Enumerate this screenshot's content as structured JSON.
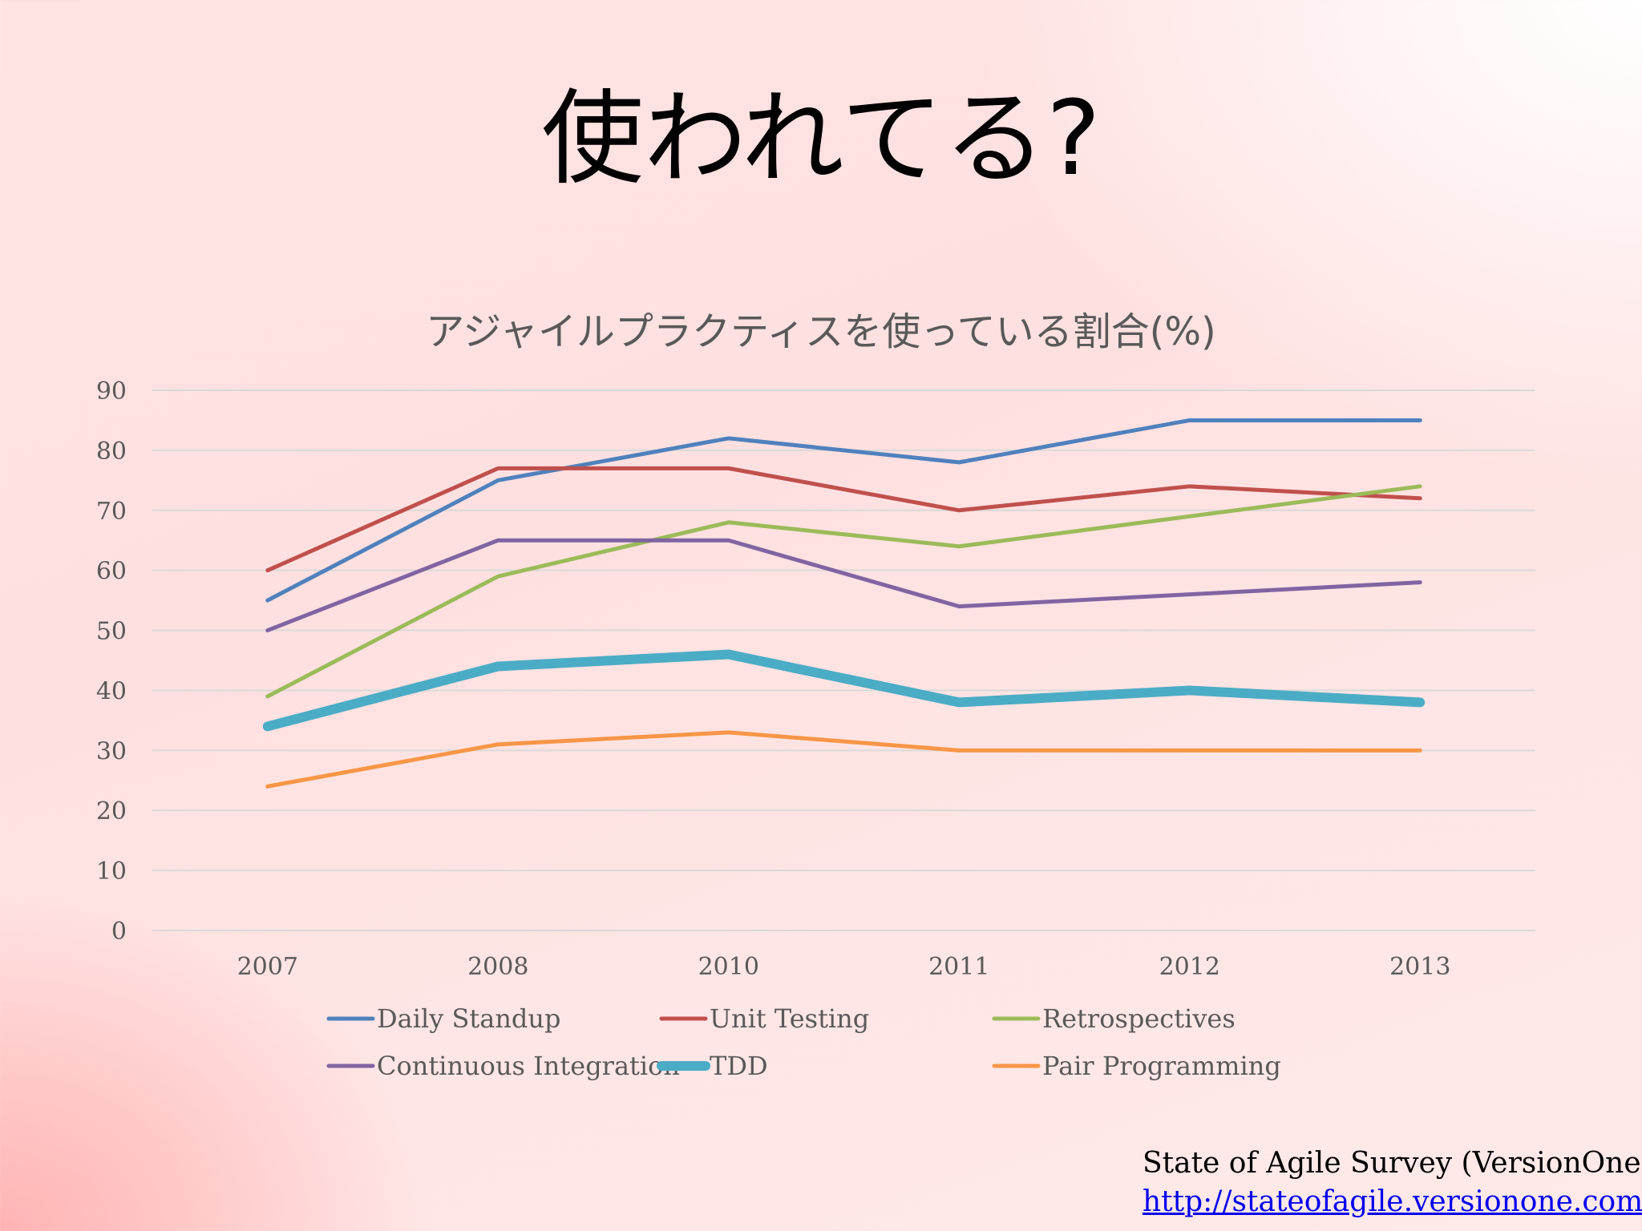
{
  "slide": {
    "title": "使われてる?",
    "source_label": "State of Agile Survey (VersionOne)",
    "source_url": "http://stateofagile.versionone.com/"
  },
  "chart_data": {
    "type": "line",
    "title": "アジャイルプラクティスを使っている割合(%)",
    "xlabel": "",
    "ylabel": "",
    "categories": [
      "2007",
      "2008",
      "2010",
      "2011",
      "2012",
      "2013"
    ],
    "ylim": [
      0,
      90
    ],
    "yticks": [
      0,
      10,
      20,
      30,
      40,
      50,
      60,
      70,
      80,
      90
    ],
    "grid": true,
    "legend_position": "bottom",
    "series": [
      {
        "name": "Daily Standup",
        "color": "#4f81bd",
        "width": 5,
        "values": [
          55,
          75,
          82,
          78,
          85,
          85
        ]
      },
      {
        "name": "Unit Testing",
        "color": "#c0504d",
        "width": 5,
        "values": [
          60,
          77,
          77,
          70,
          74,
          72
        ]
      },
      {
        "name": "Retrospectives",
        "color": "#9bbb59",
        "width": 5,
        "values": [
          39,
          59,
          68,
          64,
          69,
          74
        ]
      },
      {
        "name": "Continuous Integration",
        "color": "#8064a2",
        "width": 5,
        "values": [
          50,
          65,
          65,
          54,
          56,
          58
        ]
      },
      {
        "name": "TDD",
        "color": "#4bacc6",
        "width": 12,
        "values": [
          34,
          44,
          46,
          38,
          40,
          38
        ]
      },
      {
        "name": "Pair Programming",
        "color": "#f79646",
        "width": 5,
        "values": [
          24,
          31,
          33,
          30,
          30,
          30
        ]
      }
    ]
  }
}
